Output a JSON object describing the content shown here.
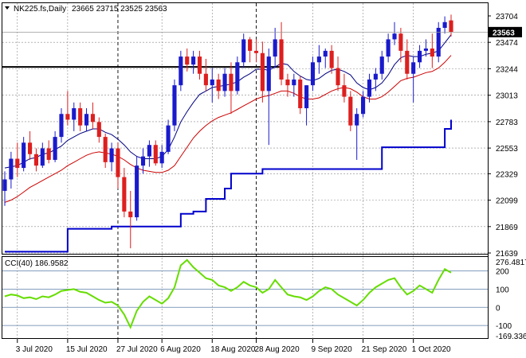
{
  "header": {
    "symbol": "NK225.fs,Daily",
    "ohlc": "23665 23715 23525 23563",
    "ohlc_values": {
      "open": 23665,
      "high": 23715,
      "low": 23525,
      "close": 23563
    }
  },
  "price_axis": {
    "ticks": [
      "23704",
      "23474",
      "23244",
      "23013",
      "22783",
      "22553",
      "22329",
      "22099",
      "21869",
      "21639"
    ],
    "current_price_label": "23563",
    "current_price": 23563
  },
  "cci": {
    "label": "CCI(40) 186.9582",
    "period": 40,
    "value": 186.9582,
    "axis_max": "276.4817",
    "axis_min": "-169.336",
    "levels": [
      "200",
      "100",
      "0",
      "-100"
    ],
    "level_values": [
      200,
      100,
      0,
      -100
    ]
  },
  "date_axis": {
    "labels": [
      "3 Jul 2020",
      "15 Jul 2020",
      "27 Jul 2020",
      "6 Aug 2020",
      "18 Aug 2020",
      "28 Aug 2020",
      "9 Sep 2020",
      "21 Sep 2020",
      "1 Oct 2020"
    ]
  },
  "colors": {
    "bull_candle": "#1a1acc",
    "bear_candle": "#dd1f1f",
    "ma_fast": "#000080",
    "ma_slow": "#cc0000",
    "stop_line": "#0000cc",
    "resistance": "#000000",
    "cci_line": "#66dd00",
    "grid": "#777777"
  },
  "chart_data": {
    "type": "candlestick",
    "dates": [
      "2020-07-01",
      "2020-07-02",
      "2020-07-03",
      "2020-07-06",
      "2020-07-07",
      "2020-07-08",
      "2020-07-09",
      "2020-07-10",
      "2020-07-13",
      "2020-07-14",
      "2020-07-15",
      "2020-07-16",
      "2020-07-17",
      "2020-07-20",
      "2020-07-21",
      "2020-07-22",
      "2020-07-23",
      "2020-07-24",
      "2020-07-27",
      "2020-07-28",
      "2020-07-29",
      "2020-07-30",
      "2020-07-31",
      "2020-08-03",
      "2020-08-04",
      "2020-08-05",
      "2020-08-06",
      "2020-08-07",
      "2020-08-10",
      "2020-08-11",
      "2020-08-12",
      "2020-08-13",
      "2020-08-14",
      "2020-08-17",
      "2020-08-18",
      "2020-08-19",
      "2020-08-20",
      "2020-08-21",
      "2020-08-24",
      "2020-08-25",
      "2020-08-26",
      "2020-08-27",
      "2020-08-28",
      "2020-08-31",
      "2020-09-01",
      "2020-09-02",
      "2020-09-03",
      "2020-09-04",
      "2020-09-07",
      "2020-09-08",
      "2020-09-09",
      "2020-09-10",
      "2020-09-11",
      "2020-09-14",
      "2020-09-15",
      "2020-09-16",
      "2020-09-17",
      "2020-09-18",
      "2020-09-21",
      "2020-09-22",
      "2020-09-23",
      "2020-09-24",
      "2020-09-25",
      "2020-09-28",
      "2020-09-29",
      "2020-09-30",
      "2020-10-01",
      "2020-10-02",
      "2020-10-05",
      "2020-10-06",
      "2020-10-07",
      "2020-10-08"
    ],
    "candles": [
      [
        22180,
        22350,
        22050,
        22280
      ],
      [
        22280,
        22520,
        22200,
        22460
      ],
      [
        22460,
        22600,
        22300,
        22380
      ],
      [
        22380,
        22650,
        22350,
        22600
      ],
      [
        22600,
        22700,
        22450,
        22500
      ],
      [
        22500,
        22550,
        22350,
        22400
      ],
      [
        22400,
        22600,
        22380,
        22550
      ],
      [
        22550,
        22620,
        22420,
        22450
      ],
      [
        22450,
        22700,
        22430,
        22650
      ],
      [
        22650,
        22900,
        22600,
        22850
      ],
      [
        22850,
        23050,
        22750,
        22800
      ],
      [
        22800,
        22950,
        22700,
        22900
      ],
      [
        22900,
        22950,
        22700,
        22750
      ],
      [
        22750,
        22900,
        22700,
        22850
      ],
      [
        22850,
        22950,
        22720,
        22780
      ],
      [
        22780,
        22820,
        22600,
        22650
      ],
      [
        22650,
        22680,
        22380,
        22430
      ],
      [
        22430,
        22600,
        22350,
        22550
      ],
      [
        22550,
        22600,
        22200,
        22300
      ],
      [
        22300,
        22380,
        21950,
        22000
      ],
      [
        22000,
        22180,
        21680,
        21950
      ],
      [
        21950,
        22480,
        21920,
        22400
      ],
      [
        22400,
        22550,
        22330,
        22480
      ],
      [
        22480,
        22620,
        22390,
        22580
      ],
      [
        22580,
        22620,
        22400,
        22420
      ],
      [
        22420,
        22580,
        22380,
        22520
      ],
      [
        22520,
        22800,
        22500,
        22750
      ],
      [
        22750,
        23150,
        22700,
        23100
      ],
      [
        23100,
        23400,
        23050,
        23350
      ],
      [
        23350,
        23420,
        23220,
        23280
      ],
      [
        23280,
        23400,
        23200,
        23350
      ],
      [
        23350,
        23400,
        23150,
        23200
      ],
      [
        23200,
        23330,
        23050,
        23100
      ],
      [
        23100,
        23250,
        22950,
        23150
      ],
      [
        23150,
        23200,
        22980,
        23050
      ],
      [
        23050,
        23250,
        23000,
        23200
      ],
      [
        23200,
        23300,
        22850,
        23050
      ],
      [
        23050,
        23350,
        23020,
        23300
      ],
      [
        23300,
        23550,
        23250,
        23500
      ],
      [
        23500,
        23520,
        23300,
        23400
      ],
      [
        23400,
        23500,
        23300,
        23380
      ],
      [
        23380,
        23480,
        22950,
        23050
      ],
      [
        23050,
        23420,
        22580,
        23350
      ],
      [
        23350,
        23600,
        23250,
        23500
      ],
      [
        23500,
        23650,
        23100,
        23150
      ],
      [
        23150,
        23200,
        23000,
        23100
      ],
      [
        23100,
        23200,
        23000,
        23150
      ],
      [
        23150,
        23180,
        22850,
        22900
      ],
      [
        22900,
        23100,
        22750,
        23100
      ],
      [
        23100,
        23350,
        23050,
        23300
      ],
      [
        23300,
        23450,
        23200,
        23350
      ],
      [
        23350,
        23420,
        23250,
        23400
      ],
      [
        23400,
        23450,
        23200,
        23250
      ],
      [
        23250,
        23350,
        23050,
        23100
      ],
      [
        23100,
        23200,
        22950,
        23000
      ],
      [
        23000,
        23050,
        22700,
        22750
      ],
      [
        22750,
        22900,
        22450,
        22850
      ],
      [
        22850,
        23050,
        22820,
        23000
      ],
      [
        23000,
        23200,
        22950,
        23150
      ],
      [
        23150,
        23250,
        23050,
        23200
      ],
      [
        23200,
        23400,
        23150,
        23350
      ],
      [
        23350,
        23550,
        23300,
        23500
      ],
      [
        23500,
        23650,
        23450,
        23550
      ],
      [
        23550,
        23600,
        23300,
        23400
      ],
      [
        23400,
        23500,
        23150,
        23200
      ],
      [
        23200,
        23350,
        22950,
        23300
      ],
      [
        23300,
        23450,
        23250,
        23400
      ],
      [
        23400,
        23500,
        23350,
        23420
      ],
      [
        23420,
        23550,
        23250,
        23350
      ],
      [
        23350,
        23650,
        23300,
        23600
      ],
      [
        23600,
        23700,
        23550,
        23650
      ],
      [
        23665,
        23715,
        23525,
        23563
      ]
    ],
    "ma_fast": [
      22380,
      22390,
      22400,
      22430,
      22460,
      22470,
      22500,
      22510,
      22540,
      22570,
      22620,
      22650,
      22680,
      22700,
      22720,
      22720,
      22690,
      22670,
      22630,
      22580,
      22520,
      22480,
      22460,
      22460,
      22460,
      22480,
      22540,
      22650,
      22780,
      22870,
      22950,
      23020,
      23050,
      23080,
      23090,
      23100,
      23110,
      23130,
      23170,
      23200,
      23240,
      23240,
      23230,
      23260,
      23290,
      23280,
      23220,
      23180,
      23150,
      23140,
      23160,
      23200,
      23230,
      23240,
      23220,
      23190,
      23120,
      23080,
      23060,
      23080,
      23120,
      23190,
      23280,
      23340,
      23360,
      23350,
      23350,
      23370,
      23380,
      23400,
      23470,
      23540
    ],
    "ma_slow": [
      22080,
      22100,
      22130,
      22170,
      22210,
      22240,
      22270,
      22300,
      22330,
      22360,
      22400,
      22430,
      22460,
      22490,
      22510,
      22520,
      22510,
      22500,
      22480,
      22450,
      22410,
      22380,
      22360,
      22350,
      22340,
      22340,
      22360,
      22400,
      22480,
      22560,
      22640,
      22700,
      22750,
      22790,
      22820,
      22840,
      22860,
      22890,
      22920,
      22950,
      22980,
      23000,
      23010,
      23030,
      23050,
      23050,
      23030,
      23000,
      22980,
      22980,
      22990,
      23020,
      23050,
      23070,
      23080,
      23070,
      23040,
      23000,
      22980,
      22980,
      23000,
      23040,
      23090,
      23140,
      23160,
      23170,
      23190,
      23210,
      23220,
      23250,
      23300,
      23360
    ],
    "stop_line": [
      21650,
      21650,
      21650,
      21650,
      21650,
      21650,
      21650,
      21650,
      21650,
      21650,
      21850,
      21850,
      21850,
      21850,
      21850,
      21850,
      21850,
      21870,
      21870,
      21870,
      21870,
      21870,
      21870,
      21870,
      21870,
      21870,
      21870,
      21870,
      21980,
      21980,
      22000,
      22000,
      22110,
      22110,
      22110,
      22200,
      22330,
      22330,
      22330,
      22330,
      22330,
      22370,
      22370,
      22370,
      22370,
      22370,
      22370,
      22370,
      22370,
      22370,
      22370,
      22370,
      22370,
      22370,
      22370,
      22370,
      22370,
      22370,
      22370,
      22370,
      22560,
      22560,
      22560,
      22560,
      22560,
      22560,
      22560,
      22560,
      22560,
      22560,
      22720,
      22800
    ],
    "resistance_level": 23260,
    "cci_values": [
      60,
      70,
      65,
      50,
      55,
      45,
      60,
      55,
      70,
      90,
      95,
      100,
      85,
      80,
      60,
      40,
      25,
      30,
      10,
      -40,
      -110,
      -20,
      30,
      60,
      40,
      20,
      50,
      110,
      230,
      260,
      220,
      190,
      160,
      150,
      120,
      110,
      90,
      110,
      140,
      120,
      110,
      80,
      100,
      150,
      110,
      70,
      60,
      55,
      40,
      60,
      90,
      110,
      100,
      70,
      50,
      30,
      10,
      40,
      80,
      110,
      130,
      150,
      160,
      110,
      70,
      90,
      120,
      100,
      80,
      150,
      210,
      190
    ],
    "cci_scale": [
      -169.336,
      276.4817
    ]
  }
}
